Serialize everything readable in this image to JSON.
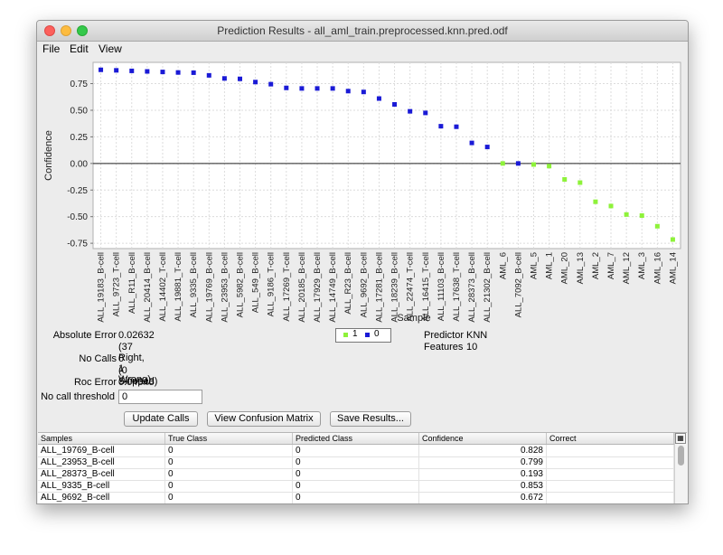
{
  "window": {
    "title": "Prediction Results - all_aml_train.preprocessed.knn.pred.odf"
  },
  "menu": {
    "file": "File",
    "edit": "Edit",
    "view": "View"
  },
  "chart_data": {
    "type": "scatter",
    "xlabel": "Sample",
    "ylabel": "Confidence",
    "ylim": [
      -0.8,
      0.95
    ],
    "yticks": [
      0.75,
      0.5,
      0.25,
      0.0,
      -0.25,
      -0.5,
      -0.75
    ],
    "grid": true,
    "legend_placement": "bottom-center",
    "colors": {
      "1": "#8ef23a",
      "0": "#1a1ad6"
    },
    "series": [
      {
        "name": "1",
        "color": "#8ef23a"
      },
      {
        "name": "0",
        "color": "#1a1ad6"
      }
    ],
    "points": [
      {
        "x": "ALL_19183_B-cell",
        "y": 0.88,
        "class": "0"
      },
      {
        "x": "ALL_9723_T-cell",
        "y": 0.875,
        "class": "0"
      },
      {
        "x": "ALL_R11_B-cell",
        "y": 0.87,
        "class": "0"
      },
      {
        "x": "ALL_20414_B-cell",
        "y": 0.865,
        "class": "0"
      },
      {
        "x": "ALL_14402_T-cell",
        "y": 0.86,
        "class": "0"
      },
      {
        "x": "ALL_19881_T-cell",
        "y": 0.855,
        "class": "0"
      },
      {
        "x": "ALL_9335_B-cell",
        "y": 0.853,
        "class": "0"
      },
      {
        "x": "ALL_19769_B-cell",
        "y": 0.828,
        "class": "0"
      },
      {
        "x": "ALL_23953_B-cell",
        "y": 0.799,
        "class": "0"
      },
      {
        "x": "ALL_5982_B-cell",
        "y": 0.795,
        "class": "0"
      },
      {
        "x": "ALL_549_B-cell",
        "y": 0.765,
        "class": "0"
      },
      {
        "x": "ALL_9186_T-cell",
        "y": 0.745,
        "class": "0"
      },
      {
        "x": "ALL_17269_T-cell",
        "y": 0.71,
        "class": "0"
      },
      {
        "x": "ALL_20185_B-cell",
        "y": 0.705,
        "class": "0"
      },
      {
        "x": "ALL_17929_B-cell",
        "y": 0.705,
        "class": "0"
      },
      {
        "x": "ALL_14749_B-cell",
        "y": 0.705,
        "class": "0"
      },
      {
        "x": "ALL_R23_B-cell",
        "y": 0.68,
        "class": "0"
      },
      {
        "x": "ALL_9692_B-cell",
        "y": 0.672,
        "class": "0"
      },
      {
        "x": "ALL_17281_B-cell",
        "y": 0.61,
        "class": "0"
      },
      {
        "x": "ALL_18239_B-cell",
        "y": 0.555,
        "class": "0"
      },
      {
        "x": "ALL_22474_T-cell",
        "y": 0.49,
        "class": "0"
      },
      {
        "x": "ALL_16415_T-cell",
        "y": 0.475,
        "class": "0"
      },
      {
        "x": "ALL_11103_B-cell",
        "y": 0.35,
        "class": "0"
      },
      {
        "x": "ALL_17638_T-cell",
        "y": 0.345,
        "class": "0"
      },
      {
        "x": "ALL_28373_B-cell",
        "y": 0.193,
        "class": "0"
      },
      {
        "x": "ALL_21302_B-cell",
        "y": 0.155,
        "class": "0"
      },
      {
        "x": "AML_6",
        "y": 0.0,
        "class": "1"
      },
      {
        "x": "ALL_7092_B-cell",
        "y": 0.0,
        "class": "0"
      },
      {
        "x": "AML_5",
        "y": -0.01,
        "class": "1"
      },
      {
        "x": "AML_1",
        "y": -0.025,
        "class": "1"
      },
      {
        "x": "AML_20",
        "y": -0.15,
        "class": "1"
      },
      {
        "x": "AML_13",
        "y": -0.18,
        "class": "1"
      },
      {
        "x": "AML_2",
        "y": -0.36,
        "class": "1"
      },
      {
        "x": "AML_7",
        "y": -0.4,
        "class": "1"
      },
      {
        "x": "AML_12",
        "y": -0.48,
        "class": "1"
      },
      {
        "x": "AML_3",
        "y": -0.49,
        "class": "1"
      },
      {
        "x": "AML_16",
        "y": -0.59,
        "class": "1"
      },
      {
        "x": "AML_14",
        "y": -0.715,
        "class": "1"
      }
    ],
    "tick_labels": [
      "ALL_19183_B-cell",
      "ALL_9723_T-cell",
      "ALL_R11_B-cell",
      "ALL_20414_B-cell",
      "ALL_14402_T-cell",
      "ALL_19881_T-cell",
      "ALL_9335_B-cell",
      "ALL_19769_B-cell",
      "ALL_23953_B-cell",
      "ALL_5982_B-cell",
      "ALL_549_B-cell",
      "ALL_9186_T-cell",
      "ALL_17269_T-cell",
      "ALL_20185_B-cell",
      "ALL_17929_B-cell",
      "ALL_14749_B-cell",
      "ALL_R23_B-cell",
      "ALL_9692_B-cell",
      "ALL_17281_B-cell",
      "ALL_18239_B-cell",
      "ALL_22474_T-cell",
      "ALL_16415_T-cell",
      "ALL_11103_B-cell",
      "ALL_17638_T-cell",
      "ALL_28373_B-cell",
      "ALL_21302_B-cell",
      "AML_6",
      "ALL_7092_B-cell",
      "AML_5",
      "AML_1",
      "AML_20",
      "AML_13",
      "AML_2",
      "AML_7",
      "AML_12",
      "AML_3",
      "AML_16",
      "AML_14"
    ]
  },
  "stats": {
    "absolute_error_label": "Absolute Error",
    "absolute_error_value": "0.02632",
    "right_wrong": "(37  Right, 1  Wrong)",
    "no_calls_label": "No Calls",
    "no_calls_value": "0",
    "skipped": "(0  Skipped)",
    "roc_error_label": "Roc Error",
    "roc_error_value": "0.04545",
    "no_call_threshold_label": "No call threshold",
    "no_call_threshold_value": "0",
    "predictor_label": "Predictor",
    "predictor_value": "KNN",
    "features_label": "Features",
    "features_value": "10"
  },
  "buttons": {
    "update_calls": "Update Calls",
    "view_confusion_matrix": "View Confusion Matrix",
    "save_results": "Save Results..."
  },
  "table": {
    "columns": [
      "Samples",
      "True Class",
      "Predicted Class",
      "Confidence",
      "Correct"
    ],
    "rows": [
      [
        "ALL_19769_B-cell",
        "0",
        "0",
        "0.828",
        ""
      ],
      [
        "ALL_23953_B-cell",
        "0",
        "0",
        "0.799",
        ""
      ],
      [
        "ALL_28373_B-cell",
        "0",
        "0",
        "0.193",
        ""
      ],
      [
        "ALL_9335_B-cell",
        "0",
        "0",
        "0.853",
        ""
      ],
      [
        "ALL_9692_B-cell",
        "0",
        "0",
        "0.672",
        ""
      ]
    ]
  }
}
